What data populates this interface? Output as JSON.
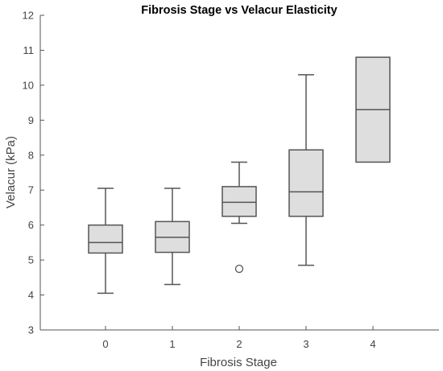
{
  "chart_data": {
    "type": "box",
    "title": "Fibrosis Stage vs Velacur Elasticity",
    "xlabel": "Fibrosis Stage",
    "ylabel": "Velacur (kPa)",
    "ylim": [
      3,
      12
    ],
    "yticks": [
      "3",
      "4",
      "5",
      "6",
      "7",
      "8",
      "9",
      "10",
      "11",
      "12"
    ],
    "categories": [
      "0",
      "1",
      "2",
      "3",
      "4"
    ],
    "boxes": [
      {
        "category": "0",
        "whisker_low": 4.05,
        "q1": 5.2,
        "median": 5.5,
        "q3": 6.0,
        "whisker_high": 7.05,
        "outliers": []
      },
      {
        "category": "1",
        "whisker_low": 4.3,
        "q1": 5.22,
        "median": 5.65,
        "q3": 6.1,
        "whisker_high": 7.05,
        "outliers": []
      },
      {
        "category": "2",
        "whisker_low": 6.05,
        "q1": 6.25,
        "median": 6.65,
        "q3": 7.1,
        "whisker_high": 7.8,
        "outliers": [
          4.75
        ]
      },
      {
        "category": "3",
        "whisker_low": 4.85,
        "q1": 6.25,
        "median": 6.95,
        "q3": 8.15,
        "whisker_high": 10.3,
        "outliers": []
      },
      {
        "category": "4",
        "whisker_low": 7.8,
        "q1": 7.8,
        "median": 9.3,
        "q3": 10.8,
        "whisker_high": 10.8,
        "outliers": []
      }
    ],
    "grid": false,
    "colors": {
      "box_fill": "#dedede",
      "box_stroke": "#555555",
      "axis": "#555555"
    }
  }
}
